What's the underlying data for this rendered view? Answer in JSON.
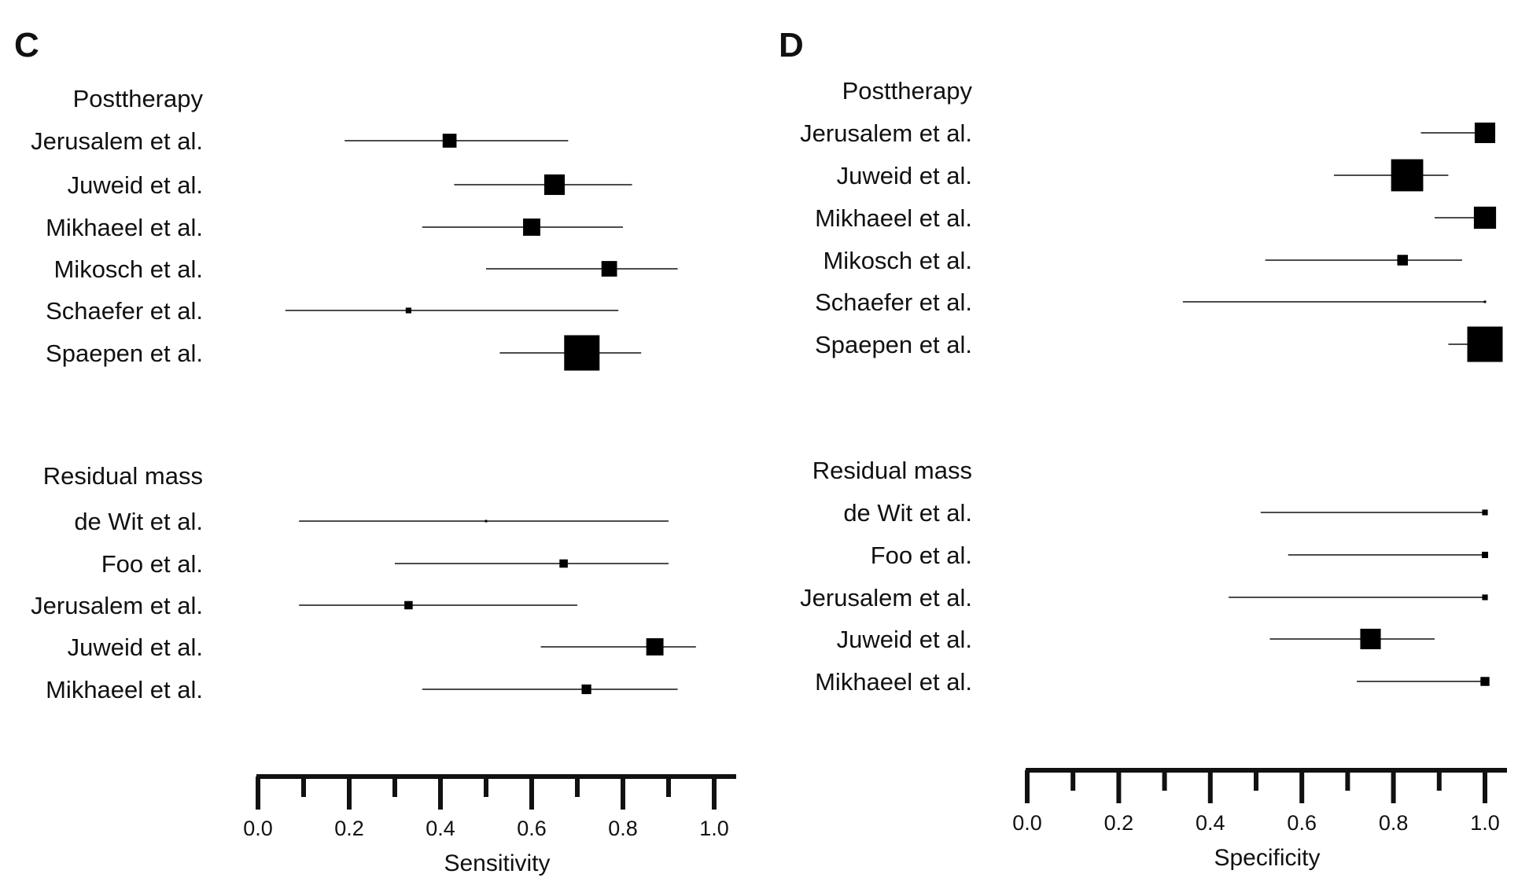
{
  "chart_data": [
    {
      "type": "forest",
      "panel": "C",
      "xlabel": "Sensitivity",
      "xlim": [
        0.0,
        1.0
      ],
      "ticks": [
        "0.0",
        "0.2",
        "0.4",
        "0.6",
        "0.8",
        "1.0"
      ],
      "groups": [
        {
          "label": "Posttherapy",
          "studies": [
            {
              "name": "Jerusalem et al.",
              "estimate": 0.42,
              "ci": [
                0.19,
                0.68
              ],
              "weight": 0.35
            },
            {
              "name": "Juweid et al.",
              "estimate": 0.65,
              "ci": [
                0.43,
                0.82
              ],
              "weight": 0.55
            },
            {
              "name": "Mikhaeel et al.",
              "estimate": 0.6,
              "ci": [
                0.36,
                0.8
              ],
              "weight": 0.45
            },
            {
              "name": "Mikosch et al.",
              "estimate": 0.77,
              "ci": [
                0.5,
                0.92
              ],
              "weight": 0.4
            },
            {
              "name": "Schaefer et al.",
              "estimate": 0.33,
              "ci": [
                0.06,
                0.79
              ],
              "weight": 0.1
            },
            {
              "name": "Spaepen et al.",
              "estimate": 0.71,
              "ci": [
                0.53,
                0.84
              ],
              "weight": 1.0
            }
          ]
        },
        {
          "label": "Residual mass",
          "studies": [
            {
              "name": "de Wit et al.",
              "estimate": 0.5,
              "ci": [
                0.09,
                0.9
              ],
              "weight": 0.0
            },
            {
              "name": "Foo et al.",
              "estimate": 0.67,
              "ci": [
                0.3,
                0.9
              ],
              "weight": 0.18
            },
            {
              "name": "Jerusalem et al.",
              "estimate": 0.33,
              "ci": [
                0.09,
                0.7
              ],
              "weight": 0.18
            },
            {
              "name": "Juweid et al.",
              "estimate": 0.87,
              "ci": [
                0.62,
                0.96
              ],
              "weight": 0.45
            },
            {
              "name": "Mikhaeel et al.",
              "estimate": 0.72,
              "ci": [
                0.36,
                0.92
              ],
              "weight": 0.22
            }
          ]
        }
      ]
    },
    {
      "type": "forest",
      "panel": "D",
      "xlabel": "Specificity",
      "xlim": [
        0.0,
        1.0
      ],
      "ticks": [
        "0.0",
        "0.2",
        "0.4",
        "0.6",
        "0.8",
        "1.0"
      ],
      "groups": [
        {
          "label": "Posttherapy",
          "studies": [
            {
              "name": "Jerusalem et al.",
              "estimate": 1.0,
              "ci": [
                0.86,
                1.0
              ],
              "weight": 0.55
            },
            {
              "name": "Juweid et al.",
              "estimate": 0.83,
              "ci": [
                0.67,
                0.92
              ],
              "weight": 0.9
            },
            {
              "name": "Mikhaeel et al.",
              "estimate": 1.0,
              "ci": [
                0.89,
                1.0
              ],
              "weight": 0.6
            },
            {
              "name": "Mikosch et al.",
              "estimate": 0.82,
              "ci": [
                0.52,
                0.95
              ],
              "weight": 0.25
            },
            {
              "name": "Schaefer et al.",
              "estimate": 1.0,
              "ci": [
                0.34,
                1.0
              ],
              "weight": 0.0
            },
            {
              "name": "Spaepen et al.",
              "estimate": 1.0,
              "ci": [
                0.92,
                1.0
              ],
              "weight": 1.0
            }
          ]
        },
        {
          "label": "Residual mass",
          "studies": [
            {
              "name": "de Wit et al.",
              "estimate": 1.0,
              "ci": [
                0.51,
                1.0
              ],
              "weight": 0.1
            },
            {
              "name": "Foo et al.",
              "estimate": 1.0,
              "ci": [
                0.57,
                1.0
              ],
              "weight": 0.12
            },
            {
              "name": "Jerusalem et al.",
              "estimate": 1.0,
              "ci": [
                0.44,
                1.0
              ],
              "weight": 0.1
            },
            {
              "name": "Juweid et al.",
              "estimate": 0.75,
              "ci": [
                0.53,
                0.89
              ],
              "weight": 0.55
            },
            {
              "name": "Mikhaeel et al.",
              "estimate": 1.0,
              "ci": [
                0.72,
                1.0
              ],
              "weight": 0.2
            }
          ]
        }
      ]
    }
  ]
}
